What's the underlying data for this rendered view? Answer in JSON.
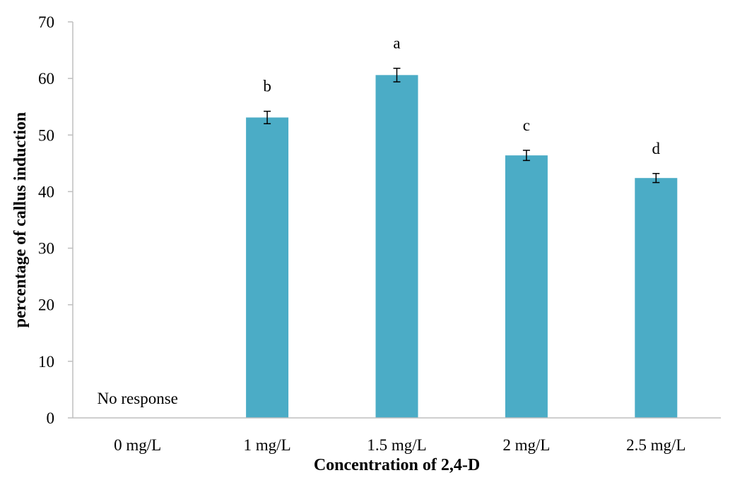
{
  "chart_data": {
    "type": "bar",
    "title": "",
    "xlabel": "Concentration of 2,4-D",
    "ylabel": "percentage of callus induction",
    "categories": [
      "0 mg/L",
      "1 mg/L",
      "1.5 mg/L",
      "2 mg/L",
      "2.5 mg/L"
    ],
    "values": [
      0,
      53.1,
      60.6,
      46.4,
      42.4
    ],
    "errors": [
      0,
      1.1,
      1.2,
      0.9,
      0.8
    ],
    "labels": [
      "No response",
      "b",
      "a",
      "c",
      "d"
    ],
    "ylim": [
      0,
      70
    ],
    "yticks": [
      0,
      10,
      20,
      30,
      40,
      50,
      60,
      70
    ],
    "grid": false,
    "legend": "none",
    "bar_color": "#4BACC6"
  }
}
